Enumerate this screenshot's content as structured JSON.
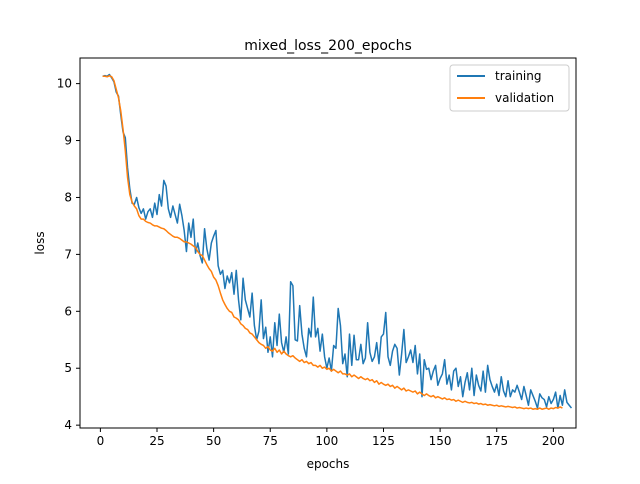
{
  "chart_data": {
    "type": "line",
    "title": "mixed_loss_200_epochs",
    "xlabel": "epochs",
    "ylabel": "loss",
    "xlim": [
      -9,
      210
    ],
    "ylim": [
      3.95,
      10.45
    ],
    "grid": false,
    "legend_placement": "top-right",
    "x_ticks": [
      "0",
      "25",
      "50",
      "75",
      "100",
      "125",
      "150",
      "175",
      "200"
    ],
    "y_ticks": [
      "4",
      "5",
      "6",
      "7",
      "8",
      "9",
      "10"
    ],
    "x_start": 1,
    "series": [
      {
        "name": "training",
        "color": "#1f77b4",
        "values": [
          10.13,
          10.14,
          10.13,
          10.16,
          10.1,
          10.03,
          9.85,
          9.78,
          9.45,
          9.15,
          9.05,
          8.52,
          8.15,
          7.9,
          7.88,
          8.0,
          7.82,
          7.72,
          7.8,
          7.62,
          7.75,
          7.8,
          7.65,
          7.9,
          7.7,
          8.05,
          7.85,
          8.3,
          8.2,
          7.8,
          7.65,
          7.85,
          7.7,
          7.55,
          7.88,
          7.68,
          7.42,
          7.05,
          7.55,
          7.3,
          7.62,
          7.02,
          7.2,
          6.98,
          6.85,
          7.45,
          7.1,
          6.9,
          7.2,
          7.32,
          7.42,
          6.8,
          6.65,
          6.72,
          6.4,
          6.62,
          6.5,
          6.68,
          6.3,
          6.72,
          6.2,
          5.85,
          6.58,
          6.2,
          6.05,
          5.9,
          6.32,
          5.75,
          5.5,
          5.65,
          6.2,
          5.52,
          5.72,
          5.28,
          5.55,
          5.2,
          5.8,
          5.4,
          5.95,
          5.45,
          5.28,
          5.55,
          5.25,
          6.52,
          6.45,
          5.5,
          5.48,
          6.1,
          5.6,
          5.35,
          5.2,
          5.7,
          5.55,
          6.25,
          5.55,
          5.7,
          5.3,
          5.6,
          5.2,
          5.0,
          5.18,
          4.95,
          5.4,
          5.35,
          6.05,
          5.75,
          5.08,
          5.25,
          4.85,
          5.6,
          5.05,
          5.58,
          5.15,
          5.15,
          5.42,
          5.08,
          5.18,
          5.8,
          5.28,
          5.12,
          5.2,
          5.45,
          5.08,
          5.55,
          5.6,
          5.98,
          5.2,
          5.05,
          5.3,
          5.42,
          5.35,
          4.88,
          5.25,
          5.68,
          5.1,
          5.2,
          5.32,
          5.1,
          5.4,
          4.9,
          5.25,
          4.5,
          5.15,
          4.98,
          5.0,
          4.8,
          4.95,
          5.05,
          4.7,
          4.82,
          4.9,
          5.15,
          4.72,
          4.88,
          4.62,
          4.95,
          5.0,
          4.68,
          4.85,
          4.5,
          4.75,
          4.92,
          4.62,
          5.0,
          4.52,
          4.88,
          4.7,
          4.6,
          4.95,
          4.58,
          5.05,
          4.8,
          4.68,
          4.58,
          4.72,
          4.52,
          4.85,
          4.6,
          4.5,
          4.78,
          4.5,
          4.62,
          4.58,
          4.7,
          4.58,
          4.45,
          4.68,
          4.52,
          4.35,
          4.62,
          4.52,
          4.42,
          4.3,
          4.55,
          4.48,
          4.45,
          4.32,
          4.5,
          4.38,
          4.45,
          4.58,
          4.3,
          4.52,
          4.35,
          4.62,
          4.4,
          4.35,
          4.3
        ]
      },
      {
        "name": "validation",
        "color": "#ff7f0e",
        "values": [
          10.13,
          10.13,
          10.12,
          10.14,
          10.12,
          10.05,
          9.9,
          9.75,
          9.52,
          9.2,
          8.82,
          8.35,
          8.05,
          7.92,
          7.85,
          7.8,
          7.68,
          7.62,
          7.62,
          7.58,
          7.56,
          7.55,
          7.52,
          7.5,
          7.5,
          7.48,
          7.46,
          7.45,
          7.42,
          7.38,
          7.35,
          7.32,
          7.3,
          7.3,
          7.28,
          7.25,
          7.22,
          7.22,
          7.2,
          7.18,
          7.15,
          7.12,
          7.05,
          7.0,
          6.98,
          6.9,
          6.82,
          6.75,
          6.7,
          6.6,
          6.55,
          6.45,
          6.32,
          6.2,
          6.12,
          6.05,
          6.0,
          5.98,
          5.9,
          5.88,
          5.85,
          5.78,
          5.75,
          5.7,
          5.68,
          5.62,
          5.6,
          5.55,
          5.5,
          5.45,
          5.42,
          5.4,
          5.35,
          5.38,
          5.32,
          5.3,
          5.35,
          5.28,
          5.32,
          5.25,
          5.3,
          5.25,
          5.22,
          5.2,
          5.22,
          5.18,
          5.15,
          5.12,
          5.15,
          5.1,
          5.12,
          5.08,
          5.1,
          5.05,
          5.05,
          5.02,
          5.05,
          5.0,
          5.02,
          4.98,
          5.0,
          4.95,
          4.98,
          4.95,
          4.92,
          4.95,
          4.9,
          4.9,
          4.88,
          4.9,
          4.85,
          4.88,
          4.85,
          4.82,
          4.85,
          4.82,
          4.8,
          4.82,
          4.78,
          4.8,
          4.75,
          4.78,
          4.72,
          4.75,
          4.72,
          4.7,
          4.72,
          4.68,
          4.7,
          4.65,
          4.68,
          4.65,
          4.62,
          4.65,
          4.6,
          4.62,
          4.6,
          4.58,
          4.6,
          4.55,
          4.58,
          4.55,
          4.52,
          4.55,
          4.52,
          4.5,
          4.52,
          4.48,
          4.5,
          4.48,
          4.46,
          4.48,
          4.45,
          4.46,
          4.44,
          4.45,
          4.42,
          4.44,
          4.42,
          4.4,
          4.42,
          4.4,
          4.39,
          4.4,
          4.38,
          4.39,
          4.37,
          4.38,
          4.36,
          4.37,
          4.35,
          4.36,
          4.35,
          4.34,
          4.35,
          4.33,
          4.34,
          4.33,
          4.32,
          4.33,
          4.32,
          4.31,
          4.32,
          4.3,
          4.31,
          4.3,
          4.29,
          4.3,
          4.29,
          4.3,
          4.28,
          4.29,
          4.28,
          4.3,
          4.28,
          4.29,
          4.3,
          4.28,
          4.3,
          4.29,
          4.31,
          4.3,
          4.32,
          4.3
        ]
      }
    ]
  }
}
